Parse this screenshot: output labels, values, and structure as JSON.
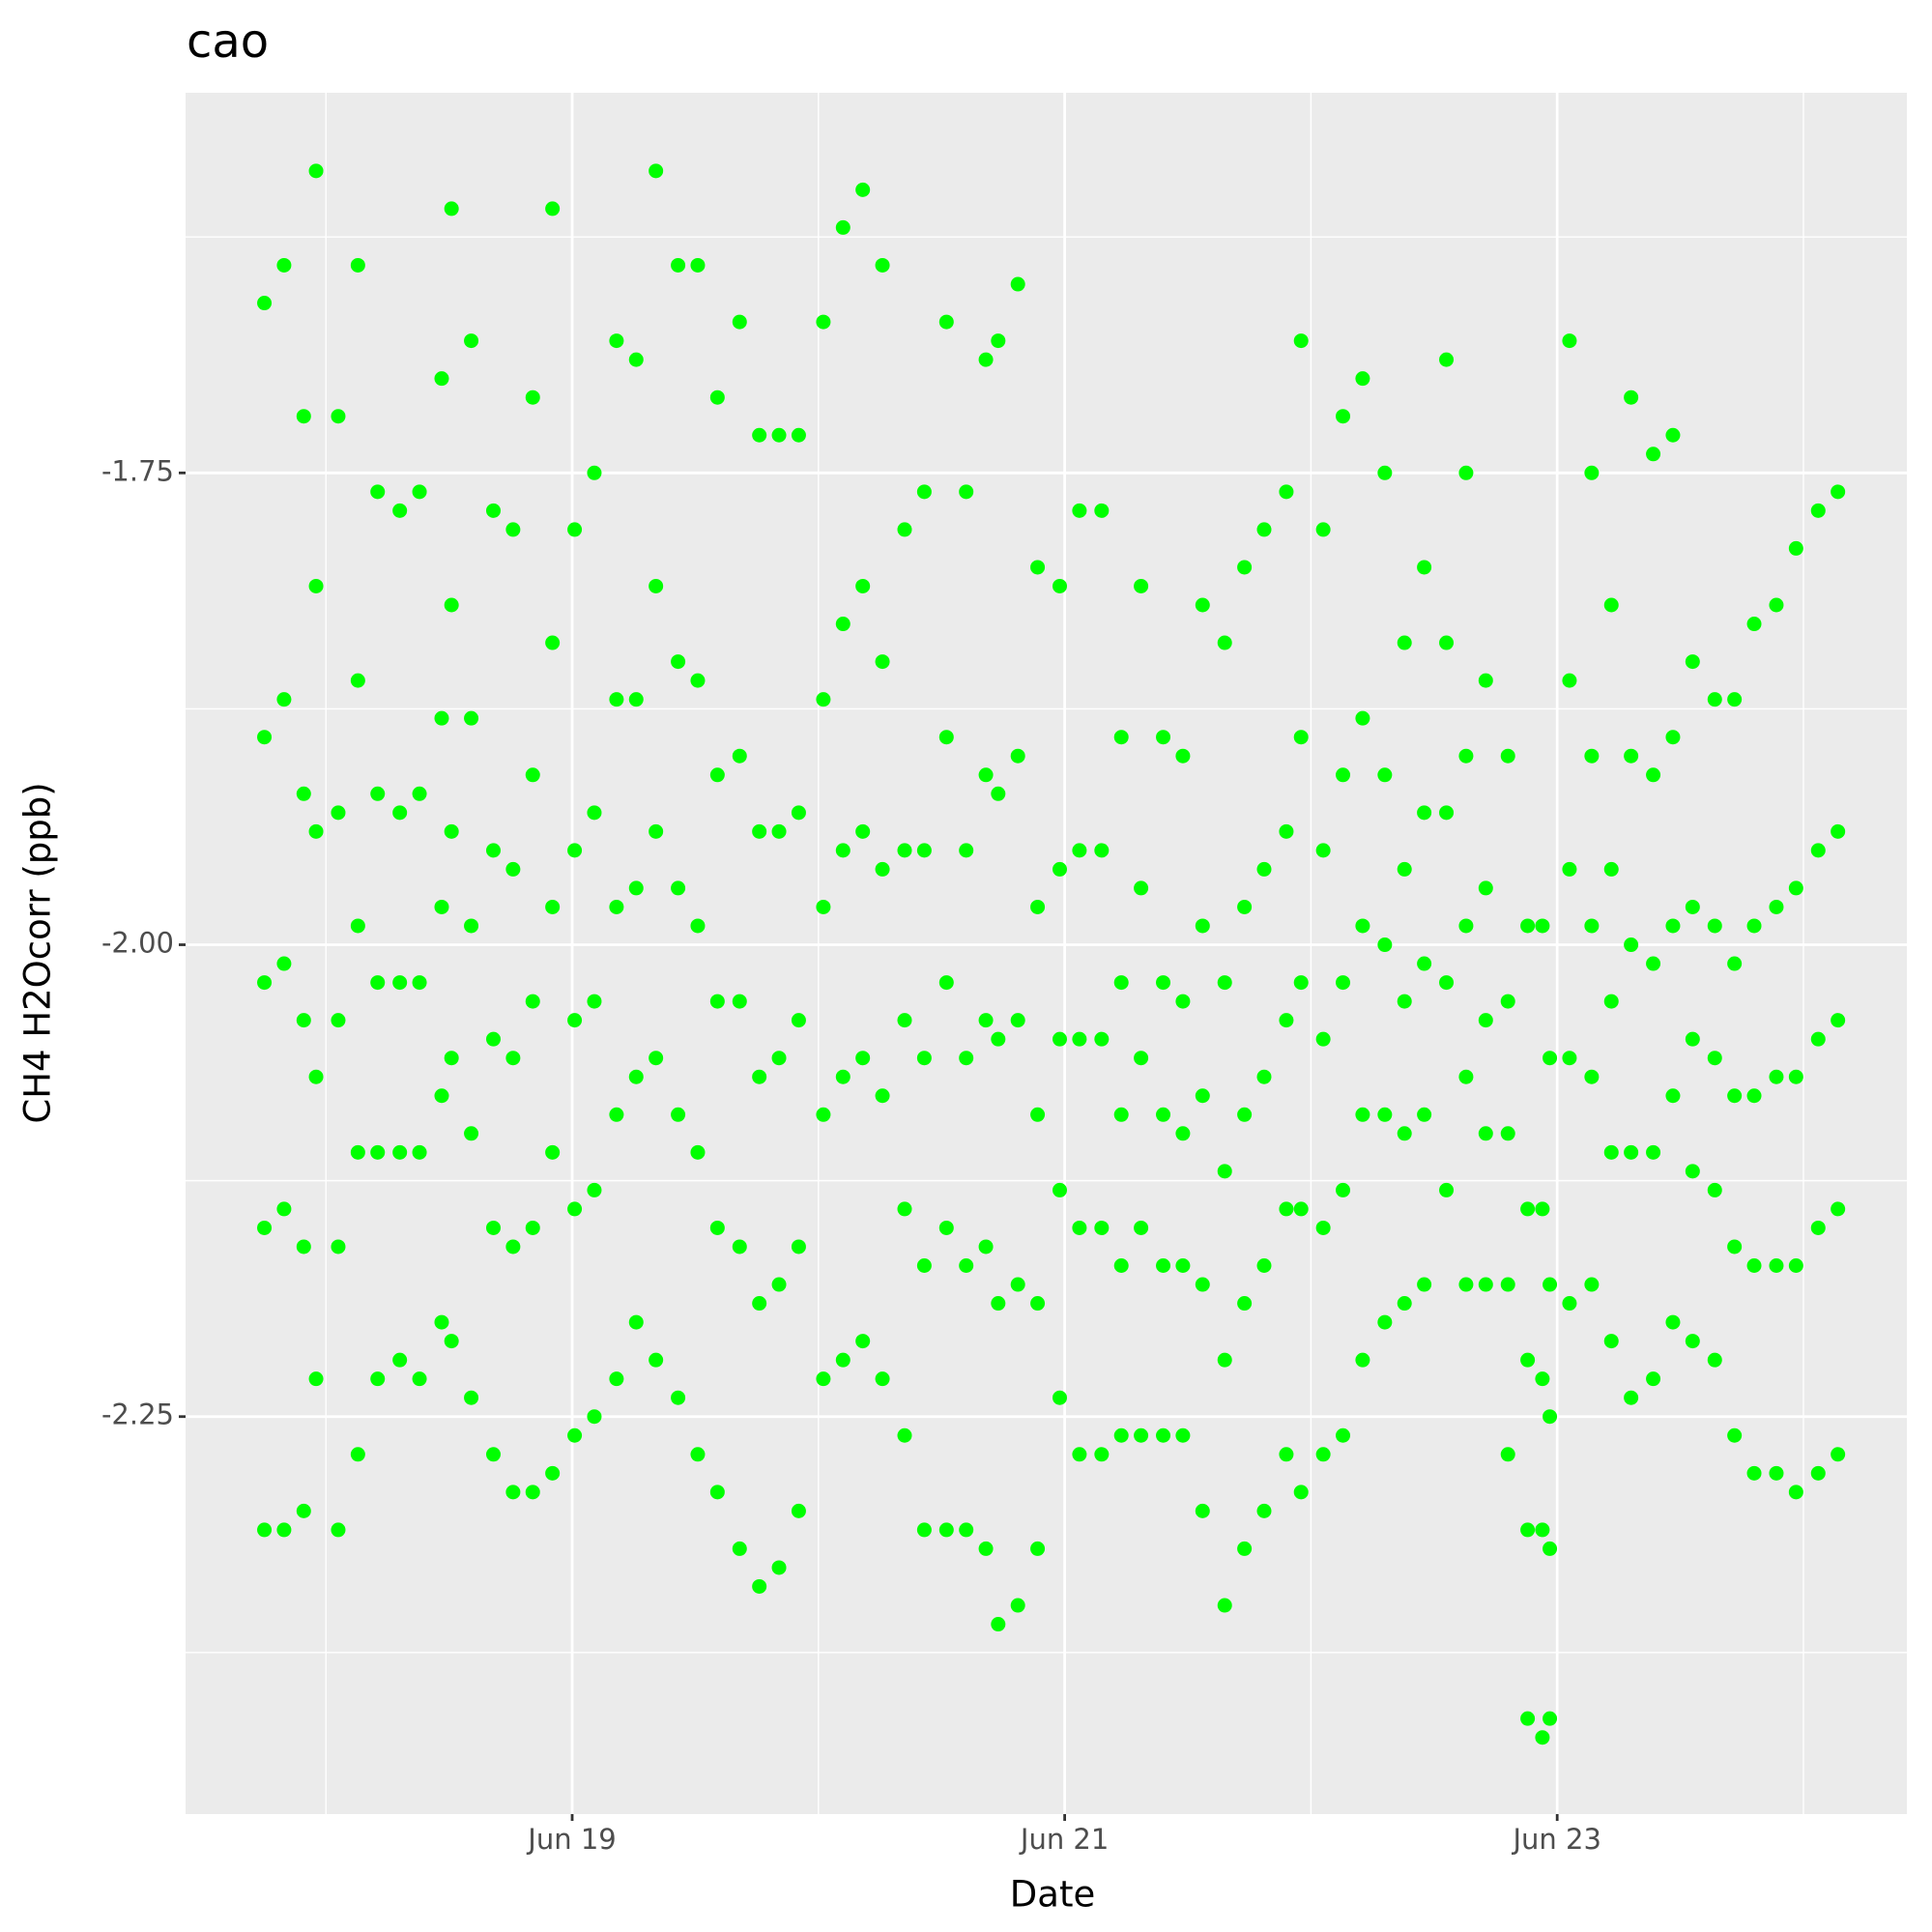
{
  "chart_data": {
    "type": "scatter",
    "title": "cao",
    "x_label": "Date",
    "y_label": "CH4 H2Ocorr (ppb)",
    "color": "#00ff00",
    "grid": true,
    "xlim": [
      17.43,
      24.42
    ],
    "ylim": [
      -2.4606,
      -1.5486
    ],
    "xticks": [
      {
        "value": 19,
        "label": "Jun 19"
      },
      {
        "value": 21,
        "label": "Jun 21"
      },
      {
        "value": 23,
        "label": "Jun 23"
      }
    ],
    "x_minor_ticks": [
      18,
      20,
      22,
      24
    ],
    "yticks": [
      -1.75,
      {
        "value": -2.0,
        "label": "-2.00"
      },
      -2.25
    ],
    "y_minor_ticks": [
      -1.625,
      -1.875,
      -2.125,
      -2.375
    ],
    "x": [
      17.75,
      17.83,
      17.91,
      17.96,
      18.05,
      18.13,
      18.21,
      18.3,
      18.38,
      18.47,
      18.51,
      18.59,
      18.68,
      18.76,
      18.84,
      18.92,
      19.01,
      19.09,
      19.18,
      19.26,
      19.34,
      19.43,
      19.51,
      19.59,
      19.68,
      19.76,
      19.84,
      19.92,
      20.02,
      20.1,
      20.18,
      20.26,
      20.35,
      20.43,
      20.52,
      20.6,
      20.68,
      20.73,
      20.81,
      20.89,
      20.98,
      21.06,
      21.15,
      21.23,
      21.31,
      21.4,
      21.48,
      21.56,
      21.65,
      21.73,
      21.81,
      21.9,
      21.96,
      22.05,
      22.13,
      22.21,
      22.3,
      22.38,
      22.46,
      22.55,
      22.63,
      22.71,
      22.8,
      22.88,
      22.94,
      22.97,
      23.05,
      23.14,
      23.22,
      23.3,
      23.39,
      23.47,
      23.55,
      23.64,
      23.72,
      23.8,
      23.89,
      23.97,
      24.06,
      24.14
    ],
    "values": [
      [
        -1.66,
        -1.89,
        -2.02,
        -2.15,
        -2.31
      ],
      [
        -1.64,
        -1.87,
        -2.01,
        -2.14,
        -2.31
      ],
      [
        -1.72,
        -1.92,
        -2.04,
        -2.16,
        -2.3
      ],
      [
        -1.59,
        -1.81,
        -1.94,
        -2.07,
        -2.23
      ],
      [
        -1.72,
        -1.93,
        -2.04,
        -2.16,
        -2.31
      ],
      [
        -1.64,
        -1.86,
        -1.99,
        -2.11,
        -2.27
      ],
      [
        -1.76,
        -1.92,
        -2.02,
        -2.11,
        -2.23
      ],
      [
        -1.77,
        -1.93,
        -2.02,
        -2.11,
        -2.22
      ],
      [
        -1.76,
        -1.92,
        -2.02,
        -2.11,
        -2.23
      ],
      [
        -1.7,
        -1.88,
        -1.98,
        -2.08,
        -2.2
      ],
      [
        -1.61,
        -1.82,
        -1.94,
        -2.06,
        -2.21
      ],
      [
        -1.68,
        -1.88,
        -1.99,
        -2.1,
        -2.24
      ],
      [
        -1.77,
        -1.95,
        -2.05,
        -2.15,
        -2.27
      ],
      [
        -1.78,
        -1.96,
        -2.06,
        -2.16,
        -2.29
      ],
      [
        -1.71,
        -1.91,
        -2.03,
        -2.15,
        -2.29
      ],
      [
        -1.61,
        -1.84,
        -1.98,
        -2.11,
        -2.28
      ],
      [
        -1.78,
        -1.95,
        -2.04,
        -2.14,
        -2.26
      ],
      [
        -1.75,
        -1.93,
        -2.03,
        -2.13,
        -2.25
      ],
      [
        -1.68,
        -1.87,
        -1.98,
        -2.09,
        -2.23
      ],
      [
        -1.69,
        -1.87,
        -1.97,
        -2.07,
        -2.2
      ],
      [
        -1.59,
        -1.81,
        -1.94,
        -2.06,
        -2.22
      ],
      [
        -1.64,
        -1.85,
        -1.97,
        -2.09,
        -2.24
      ],
      [
        -1.64,
        -1.86,
        -1.99,
        -2.11,
        -2.27
      ],
      [
        -1.71,
        -1.91,
        -2.03,
        -2.15,
        -2.29
      ],
      [
        -1.67,
        -1.9,
        -2.03,
        -2.16,
        -2.32
      ],
      [
        -1.73,
        -1.94,
        -2.07,
        -2.19,
        -2.34
      ],
      [
        -1.73,
        -1.94,
        -2.06,
        -2.18,
        -2.33
      ],
      [
        -1.73,
        -1.93,
        -2.04,
        -2.16,
        -2.3
      ],
      [
        -1.67,
        -1.87,
        -1.98,
        -2.09,
        -2.23
      ],
      [
        -1.62,
        -1.83,
        -1.95,
        -2.07,
        -2.22
      ],
      [
        -1.6,
        -1.81,
        -1.94,
        -2.06,
        -2.21
      ],
      [
        -1.64,
        -1.85,
        -1.96,
        -2.08,
        -2.23
      ],
      [
        -1.78,
        -1.95,
        -2.04,
        -2.14,
        -2.26
      ],
      [
        -1.76,
        -1.95,
        -2.06,
        -2.17,
        -2.31
      ],
      [
        -1.67,
        -1.89,
        -2.02,
        -2.15,
        -2.31
      ],
      [
        -1.76,
        -1.95,
        -2.06,
        -2.17,
        -2.31
      ],
      [
        -1.69,
        -1.91,
        -2.04,
        -2.16,
        -2.32
      ],
      [
        -1.68,
        -1.92,
        -2.05,
        -2.19,
        -2.36
      ],
      [
        -1.65,
        -1.9,
        -2.04,
        -2.18,
        -2.35
      ],
      [
        -1.8,
        -1.98,
        -2.09,
        -2.19,
        -2.32
      ],
      [
        -1.81,
        -1.96,
        -2.05,
        -2.13,
        -2.24
      ],
      [
        -1.77,
        -1.95,
        -2.05,
        -2.15,
        -2.27
      ],
      [
        -1.77,
        -1.95,
        -2.05,
        -2.15,
        -2.27
      ],
      [
        -1.89,
        -2.02,
        -2.09,
        -2.17,
        -2.26
      ],
      [
        -1.81,
        -1.97,
        -2.06,
        -2.15,
        -2.26
      ],
      [
        -1.89,
        -2.02,
        -2.09,
        -2.17,
        -2.26
      ],
      [
        -1.9,
        -2.03,
        -2.1,
        -2.17,
        -2.26
      ],
      [
        -1.82,
        -1.99,
        -2.08,
        -2.18,
        -2.3
      ],
      [
        -1.84,
        -2.02,
        -2.12,
        -2.22,
        -2.35
      ],
      [
        -1.8,
        -1.98,
        -2.09,
        -2.19,
        -2.32
      ],
      [
        -1.78,
        -1.96,
        -2.07,
        -2.17,
        -2.3
      ],
      [
        -1.76,
        -1.94,
        -2.04,
        -2.14,
        -2.27
      ],
      [
        -1.68,
        -1.89,
        -2.02,
        -2.14,
        -2.29
      ],
      [
        -1.78,
        -1.95,
        -2.05,
        -2.15,
        -2.27
      ],
      [
        -1.72,
        -1.91,
        -2.02,
        -2.13,
        -2.26
      ],
      [
        -1.7,
        -1.88,
        -1.99,
        -2.09,
        -2.22
      ],
      [
        -1.75,
        -1.91,
        -2.0,
        -2.09,
        -2.2
      ],
      [
        -1.84,
        -1.96,
        -2.03,
        -2.1,
        -2.19
      ],
      [
        -1.8,
        -1.93,
        -2.01,
        -2.09,
        -2.18
      ],
      [
        -1.69,
        -1.84,
        -1.93,
        -2.02,
        -2.13
      ],
      [
        -1.75,
        -1.9,
        -1.99,
        -2.07,
        -2.18
      ],
      [
        -1.86,
        -1.97,
        -2.04,
        -2.1,
        -2.18
      ],
      [
        -1.9,
        -2.03,
        -2.1,
        -2.18,
        -2.27
      ],
      [
        -1.99,
        -2.14,
        -2.22,
        -2.31,
        -2.41
      ],
      [
        -1.99,
        -2.14,
        -2.23,
        -2.31,
        -2.42
      ],
      [
        -2.06,
        -2.18,
        -2.25,
        -2.32,
        -2.41
      ],
      [
        -1.68,
        -1.86,
        -1.96,
        -2.06,
        -2.19
      ],
      [
        -1.75,
        -1.9,
        -1.99,
        -2.07,
        -2.18
      ],
      [
        -1.82,
        -1.96,
        -2.03,
        -2.11,
        -2.21
      ],
      [
        -1.71,
        -1.9,
        -2.0,
        -2.11,
        -2.24
      ],
      [
        -1.74,
        -1.91,
        -2.01,
        -2.11,
        -2.23
      ],
      [
        -1.73,
        -1.89,
        -1.99,
        -2.08,
        -2.2
      ],
      [
        -1.85,
        -1.98,
        -2.05,
        -2.12,
        -2.21
      ],
      [
        -1.87,
        -1.99,
        -2.06,
        -2.13,
        -2.22
      ],
      [
        -1.87,
        -2.01,
        -2.08,
        -2.16,
        -2.26
      ],
      [
        -1.83,
        -1.99,
        -2.08,
        -2.17,
        -2.28
      ],
      [
        -1.82,
        -1.98,
        -2.07,
        -2.17,
        -2.28
      ],
      [
        -1.79,
        -1.97,
        -2.07,
        -2.17,
        -2.29
      ],
      [
        -1.77,
        -1.95,
        -2.05,
        -2.15,
        -2.28
      ],
      [
        -1.76,
        -1.94,
        -2.04,
        -2.14,
        -2.27
      ]
    ]
  }
}
